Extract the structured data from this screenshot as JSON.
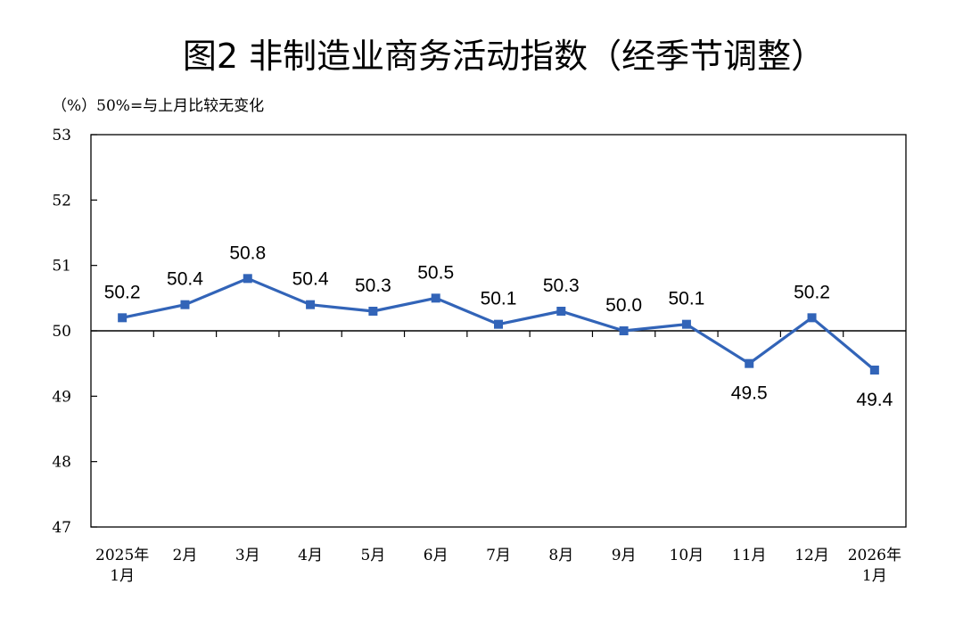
{
  "title": "图2 非制造业商务活动指数（经季节调整）",
  "unit_note": "（%）50%=与上月比较无变化",
  "chart_data": {
    "type": "line",
    "title": "图2 非制造业商务活动指数（经季节调整）",
    "xlabel": "",
    "ylabel": "（%）50%=与上月比较无变化",
    "categories": [
      [
        "2025年",
        "1月"
      ],
      [
        "2月"
      ],
      [
        "3月"
      ],
      [
        "4月"
      ],
      [
        "5月"
      ],
      [
        "6月"
      ],
      [
        "7月"
      ],
      [
        "8月"
      ],
      [
        "9月"
      ],
      [
        "10月"
      ],
      [
        "11月"
      ],
      [
        "12月"
      ],
      [
        "2026年",
        "1月"
      ]
    ],
    "values": [
      50.2,
      50.4,
      50.8,
      50.4,
      50.3,
      50.5,
      50.1,
      50.3,
      50.0,
      50.1,
      49.5,
      50.2,
      49.4
    ],
    "data_labels": [
      "50.2",
      "50.4",
      "50.8",
      "50.4",
      "50.3",
      "50.5",
      "50.1",
      "50.3",
      "50.0",
      "50.1",
      "49.5",
      "50.2",
      "49.4"
    ],
    "ylim": [
      47,
      53
    ],
    "yticks": [
      47,
      48,
      49,
      50,
      51,
      52,
      53
    ],
    "baseline": 50,
    "grid": false,
    "legend": "none",
    "line_color": "#3264b8",
    "marker": "square"
  }
}
